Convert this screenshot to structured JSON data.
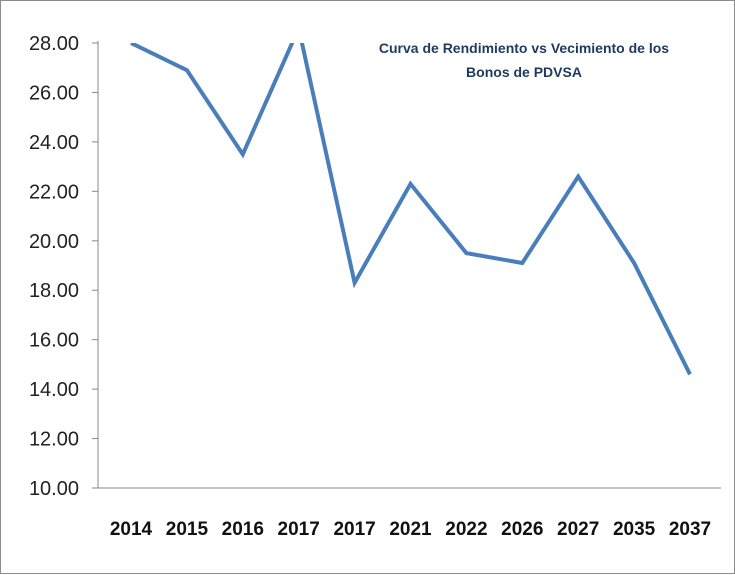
{
  "chart_data": {
    "type": "line",
    "title_lines": [
      "Curva de Rendimiento vs Vecimiento de los",
      "Bonos de PDVSA"
    ],
    "xlabel": "",
    "ylabel": "",
    "categories": [
      "2014",
      "2015",
      "2016",
      "2017",
      "2017",
      "2021",
      "2022",
      "2026",
      "2027",
      "2035",
      "2037"
    ],
    "series": [
      {
        "values": [
          28.0,
          26.9,
          23.5,
          28.6,
          18.3,
          22.3,
          19.5,
          19.1,
          22.6,
          19.1,
          14.6
        ],
        "color": "#4a7ebb"
      }
    ],
    "ylim": [
      10,
      28
    ],
    "yticks": [
      "10.00",
      "12.00",
      "14.00",
      "16.00",
      "18.00",
      "20.00",
      "22.00",
      "24.00",
      "26.00",
      "28.00"
    ],
    "grid": false,
    "legend": "none"
  }
}
